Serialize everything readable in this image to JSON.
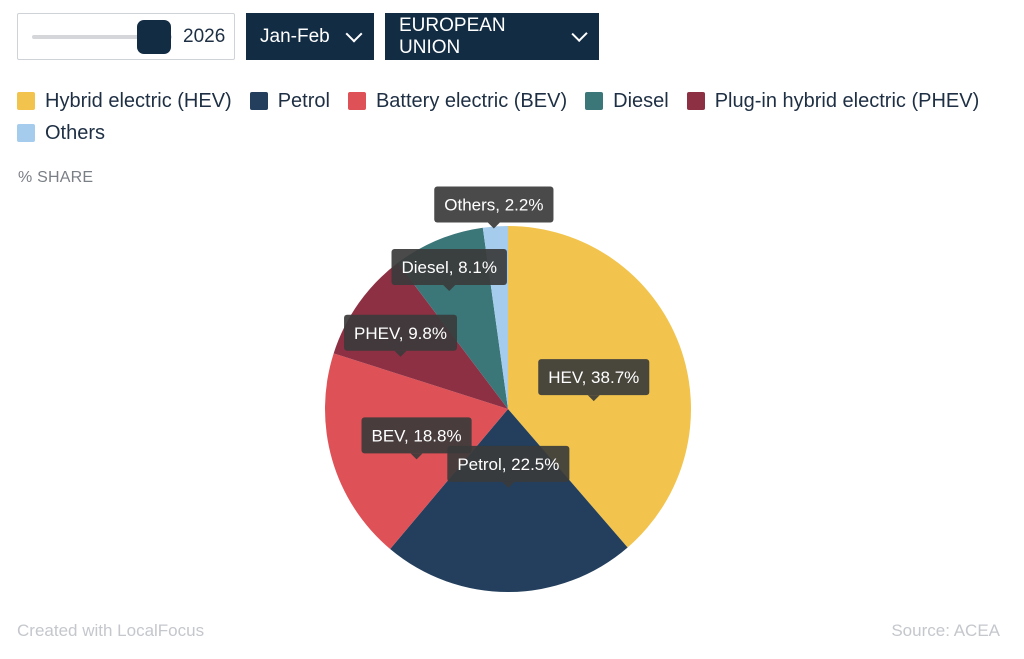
{
  "controls": {
    "year_value": "2026",
    "year_slider_fraction": 0.95,
    "period_selected": "Jan-Feb",
    "region_selected": "EUROPEAN UNION"
  },
  "legend": {
    "items": [
      {
        "label": "Hybrid electric (HEV)",
        "color": "#f2c44e"
      },
      {
        "label": "Petrol",
        "color": "#233f5d"
      },
      {
        "label": "Battery electric (BEV)",
        "color": "#de5157"
      },
      {
        "label": "Diesel",
        "color": "#3b7679"
      },
      {
        "label": "Plug-in hybrid electric (PHEV)",
        "color": "#8e3043"
      },
      {
        "label": "Others",
        "color": "#a5ccec"
      }
    ]
  },
  "unit_label": "% SHARE",
  "chart_data": {
    "type": "pie",
    "title": "",
    "categories": [
      "Hybrid electric (HEV)",
      "Petrol",
      "Battery electric (BEV)",
      "Plug-in hybrid electric (PHEV)",
      "Diesel",
      "Others"
    ],
    "values": [
      38.7,
      22.5,
      18.8,
      9.8,
      8.1,
      2.2
    ],
    "colors": [
      "#f2c44e",
      "#233f5d",
      "#de5157",
      "#8e3043",
      "#3b7679",
      "#a5ccec"
    ],
    "data_labels": [
      "HEV, 38.7%",
      "Petrol, 22.5%",
      "BEV, 18.8%",
      "PHEV, 9.8%",
      "Diesel, 8.1%",
      "Others, 2.2%"
    ],
    "unit": "% SHARE",
    "legend_position": "top-left",
    "start_angle": "12 o'clock",
    "direction": "clockwise"
  },
  "footer": {
    "credit": "Created with LocalFocus",
    "source": "Source:  ACEA"
  }
}
